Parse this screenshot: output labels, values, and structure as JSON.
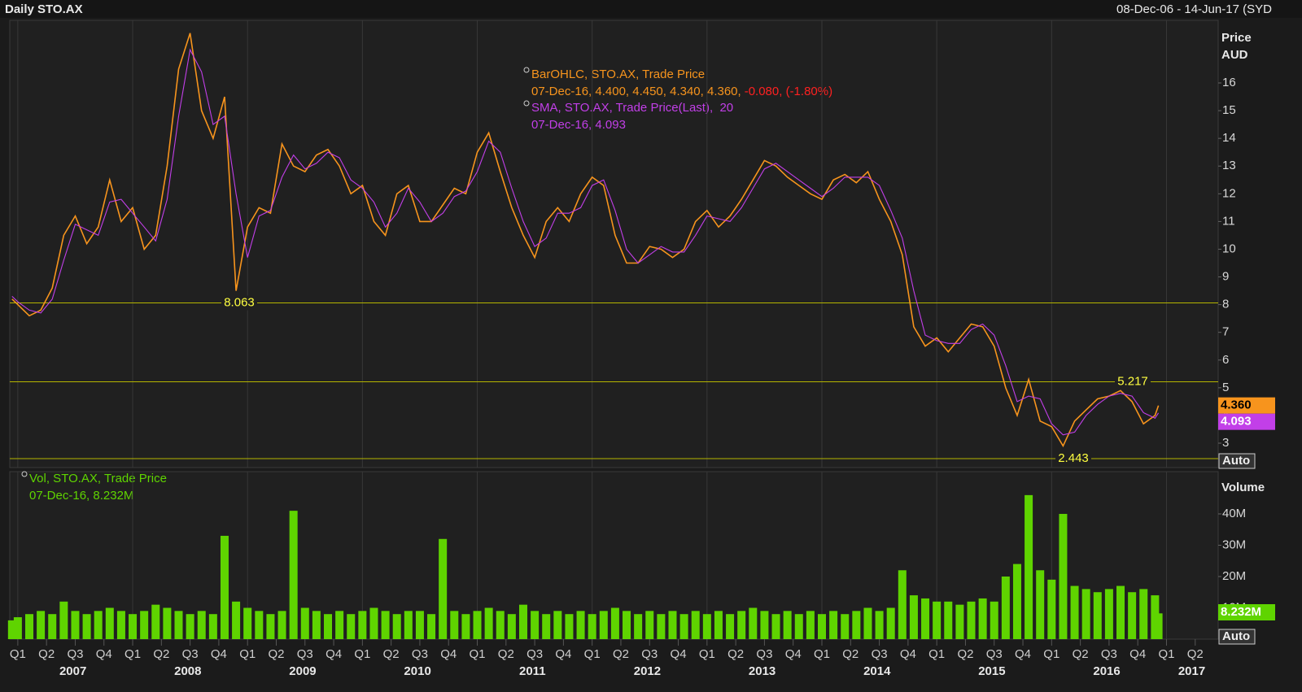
{
  "header": {
    "title": "Daily STO.AX",
    "date_range": "08-Dec-06 - 14-Jun-17 (SYD"
  },
  "chart_data": [
    {
      "type": "line",
      "ylabel": "Price",
      "yunit": "AUD",
      "legend": {
        "ohlc_values": "07-Dec-16, 4.400, 4.450, 4.340, 4.360,",
        "ohlc_change": "-0.080, (-1.80%)",
        "sma_values": "07-Dec-16, 4.093"
      },
      "x": [
        2006.95,
        2007,
        2007.1,
        2007.2,
        2007.3,
        2007.4,
        2007.5,
        2007.6,
        2007.7,
        2007.8,
        2007.9,
        2008,
        2008.1,
        2008.2,
        2008.3,
        2008.4,
        2008.5,
        2008.6,
        2008.7,
        2008.8,
        2008.9,
        2009,
        2009.1,
        2009.2,
        2009.3,
        2009.4,
        2009.5,
        2009.6,
        2009.7,
        2009.8,
        2009.9,
        2010,
        2010.1,
        2010.2,
        2010.3,
        2010.4,
        2010.5,
        2010.6,
        2010.7,
        2010.8,
        2010.9,
        2011,
        2011.1,
        2011.2,
        2011.3,
        2011.4,
        2011.5,
        2011.6,
        2011.7,
        2011.8,
        2011.9,
        2012,
        2012.1,
        2012.2,
        2012.3,
        2012.4,
        2012.5,
        2012.6,
        2012.7,
        2012.8,
        2012.9,
        2013,
        2013.1,
        2013.2,
        2013.3,
        2013.4,
        2013.5,
        2013.6,
        2013.7,
        2013.8,
        2013.9,
        2014,
        2014.1,
        2014.2,
        2014.3,
        2014.4,
        2014.5,
        2014.6,
        2014.7,
        2014.8,
        2014.9,
        2015,
        2015.1,
        2015.2,
        2015.3,
        2015.4,
        2015.5,
        2015.6,
        2015.7,
        2015.8,
        2015.9,
        2016,
        2016.1,
        2016.2,
        2016.3,
        2016.4,
        2016.5,
        2016.6,
        2016.7,
        2016.8,
        2016.9,
        2016.93
      ],
      "xlim": [
        2006.93,
        2017.45
      ],
      "ylim": [
        2.12,
        18.26
      ],
      "yticks": [
        3,
        4,
        5,
        6,
        7,
        8,
        9,
        10,
        11,
        12,
        13,
        14,
        15,
        16
      ],
      "series": [
        {
          "name": "BarOHLC, STO.AX, Trade Price",
          "color": "#f7941d",
          "last_label": "4.360",
          "values": [
            8.2,
            8.0,
            7.6,
            7.8,
            8.6,
            10.5,
            11.2,
            10.2,
            10.8,
            12.5,
            11.0,
            11.5,
            10.0,
            10.5,
            13.0,
            16.5,
            17.8,
            15.0,
            14.0,
            15.5,
            8.5,
            10.8,
            11.5,
            11.3,
            13.8,
            13.0,
            12.8,
            13.4,
            13.6,
            13.0,
            12.0,
            12.3,
            11.0,
            10.5,
            12.0,
            12.3,
            11.0,
            11.0,
            11.6,
            12.2,
            12.0,
            13.5,
            14.2,
            12.8,
            11.5,
            10.5,
            9.7,
            11.0,
            11.5,
            11.0,
            12.0,
            12.6,
            12.3,
            10.5,
            9.5,
            9.5,
            10.1,
            10.0,
            9.7,
            10.0,
            11.0,
            11.4,
            10.8,
            11.2,
            11.8,
            12.5,
            13.2,
            13.0,
            12.6,
            12.3,
            12.0,
            11.8,
            12.5,
            12.7,
            12.4,
            12.8,
            11.8,
            11.0,
            9.8,
            7.2,
            6.5,
            6.8,
            6.3,
            6.8,
            7.3,
            7.2,
            6.5,
            5.0,
            4.0,
            5.3,
            3.8,
            3.6,
            2.9,
            3.8,
            4.2,
            4.6,
            4.7,
            4.9,
            4.5,
            3.7,
            4.0,
            4.36
          ]
        },
        {
          "name": "SMA, STO.AX, Trade Price(Last),  20",
          "color": "#c23fe8",
          "last_label": "4.093",
          "values": [
            8.3,
            8.1,
            7.8,
            7.7,
            8.2,
            9.6,
            10.9,
            10.7,
            10.5,
            11.7,
            11.8,
            11.3,
            10.8,
            10.3,
            11.8,
            14.8,
            17.2,
            16.4,
            14.5,
            14.8,
            12.0,
            9.7,
            11.2,
            11.4,
            12.6,
            13.4,
            12.9,
            13.1,
            13.5,
            13.3,
            12.5,
            12.2,
            11.7,
            10.8,
            11.3,
            12.2,
            11.7,
            11.0,
            11.3,
            11.9,
            12.1,
            12.8,
            13.9,
            13.5,
            12.2,
            11.0,
            10.1,
            10.4,
            11.3,
            11.3,
            11.5,
            12.3,
            12.5,
            11.4,
            10.0,
            9.5,
            9.8,
            10.1,
            9.9,
            9.9,
            10.5,
            11.2,
            11.1,
            11.0,
            11.5,
            12.2,
            12.9,
            13.1,
            12.8,
            12.5,
            12.2,
            11.9,
            12.2,
            12.6,
            12.6,
            12.6,
            12.3,
            11.4,
            10.4,
            8.5,
            6.9,
            6.7,
            6.6,
            6.6,
            7.1,
            7.3,
            6.9,
            5.8,
            4.5,
            4.7,
            4.6,
            3.7,
            3.3,
            3.4,
            4.0,
            4.4,
            4.7,
            4.8,
            4.7,
            4.1,
            3.9,
            4.093
          ]
        }
      ],
      "hlines": [
        8.063,
        5.217,
        2.443
      ],
      "hline_color": "#b5b500",
      "scale_mode": "Auto"
    },
    {
      "type": "bar",
      "ylabel": "Volume",
      "legend_title": "Vol, STO.AX, Trade Price",
      "legend_values": "07-Dec-16, 8.232M",
      "x": [
        2006.95,
        2007,
        2007.1,
        2007.2,
        2007.3,
        2007.4,
        2007.5,
        2007.6,
        2007.7,
        2007.8,
        2007.9,
        2008,
        2008.1,
        2008.2,
        2008.3,
        2008.4,
        2008.5,
        2008.6,
        2008.7,
        2008.8,
        2008.9,
        2009,
        2009.1,
        2009.2,
        2009.3,
        2009.4,
        2009.5,
        2009.6,
        2009.7,
        2009.8,
        2009.9,
        2010,
        2010.1,
        2010.2,
        2010.3,
        2010.4,
        2010.5,
        2010.6,
        2010.7,
        2010.8,
        2010.9,
        2011,
        2011.1,
        2011.2,
        2011.3,
        2011.4,
        2011.5,
        2011.6,
        2011.7,
        2011.8,
        2011.9,
        2012,
        2012.1,
        2012.2,
        2012.3,
        2012.4,
        2012.5,
        2012.6,
        2012.7,
        2012.8,
        2012.9,
        2013,
        2013.1,
        2013.2,
        2013.3,
        2013.4,
        2013.5,
        2013.6,
        2013.7,
        2013.8,
        2013.9,
        2014,
        2014.1,
        2014.2,
        2014.3,
        2014.4,
        2014.5,
        2014.6,
        2014.7,
        2014.8,
        2014.9,
        2015,
        2015.1,
        2015.2,
        2015.3,
        2015.4,
        2015.5,
        2015.6,
        2015.7,
        2015.8,
        2015.9,
        2016,
        2016.1,
        2016.2,
        2016.3,
        2016.4,
        2016.5,
        2016.6,
        2016.7,
        2016.8,
        2016.9,
        2016.93
      ],
      "xlim": [
        2006.93,
        2017.45
      ],
      "ylim": [
        0,
        53500000
      ],
      "yticks": [
        {
          "value": 10000000,
          "label": "10M"
        },
        {
          "value": 20000000,
          "label": "20M"
        },
        {
          "value": 30000000,
          "label": "30M"
        },
        {
          "value": 40000000,
          "label": "40M"
        }
      ],
      "color": "#5fd400",
      "last_label": "8.232M",
      "scale_mode": "Auto",
      "values": [
        6000000,
        7000000,
        8000000,
        9000000,
        8000000,
        12000000,
        9000000,
        8000000,
        9000000,
        10000000,
        9000000,
        8000000,
        9000000,
        11000000,
        10000000,
        9000000,
        8000000,
        9000000,
        8000000,
        33000000,
        12000000,
        10000000,
        9000000,
        8000000,
        9000000,
        41000000,
        10000000,
        9000000,
        8000000,
        9000000,
        8000000,
        9000000,
        10000000,
        9000000,
        8000000,
        9000000,
        9000000,
        8000000,
        32000000,
        9000000,
        8000000,
        9000000,
        10000000,
        9000000,
        8000000,
        11000000,
        9000000,
        8000000,
        9000000,
        8000000,
        9000000,
        8000000,
        9000000,
        10000000,
        9000000,
        8000000,
        9000000,
        8000000,
        9000000,
        8000000,
        9000000,
        8000000,
        9000000,
        8000000,
        9000000,
        10000000,
        9000000,
        8000000,
        9000000,
        8000000,
        9000000,
        8000000,
        9000000,
        8000000,
        9000000,
        10000000,
        9000000,
        10000000,
        22000000,
        14000000,
        13000000,
        12000000,
        12000000,
        11000000,
        12000000,
        13000000,
        12000000,
        20000000,
        24000000,
        46000000,
        22000000,
        19000000,
        40000000,
        17000000,
        16000000,
        15000000,
        16000000,
        17000000,
        15000000,
        16000000,
        14000000,
        8232000
      ]
    }
  ],
  "time_axis": {
    "xticks": [
      {
        "value": 2007,
        "label": "Q1"
      },
      {
        "value": 2007.25,
        "label": "Q2"
      },
      {
        "value": 2007.5,
        "label": "Q3"
      },
      {
        "value": 2007.75,
        "label": "Q4"
      },
      {
        "value": 2008,
        "label": "Q1"
      },
      {
        "value": 2008.25,
        "label": "Q2"
      },
      {
        "value": 2008.5,
        "label": "Q3"
      },
      {
        "value": 2008.75,
        "label": "Q4"
      },
      {
        "value": 2009,
        "label": "Q1"
      },
      {
        "value": 2009.25,
        "label": "Q2"
      },
      {
        "value": 2009.5,
        "label": "Q3"
      },
      {
        "value": 2009.75,
        "label": "Q4"
      },
      {
        "value": 2010,
        "label": "Q1"
      },
      {
        "value": 2010.25,
        "label": "Q2"
      },
      {
        "value": 2010.5,
        "label": "Q3"
      },
      {
        "value": 2010.75,
        "label": "Q4"
      },
      {
        "value": 2011,
        "label": "Q1"
      },
      {
        "value": 2011.25,
        "label": "Q2"
      },
      {
        "value": 2011.5,
        "label": "Q3"
      },
      {
        "value": 2011.75,
        "label": "Q4"
      },
      {
        "value": 2012,
        "label": "Q1"
      },
      {
        "value": 2012.25,
        "label": "Q2"
      },
      {
        "value": 2012.5,
        "label": "Q3"
      },
      {
        "value": 2012.75,
        "label": "Q4"
      },
      {
        "value": 2013,
        "label": "Q1"
      },
      {
        "value": 2013.25,
        "label": "Q2"
      },
      {
        "value": 2013.5,
        "label": "Q3"
      },
      {
        "value": 2013.75,
        "label": "Q4"
      },
      {
        "value": 2014,
        "label": "Q1"
      },
      {
        "value": 2014.25,
        "label": "Q2"
      },
      {
        "value": 2014.5,
        "label": "Q3"
      },
      {
        "value": 2014.75,
        "label": "Q4"
      },
      {
        "value": 2015,
        "label": "Q1"
      },
      {
        "value": 2015.25,
        "label": "Q2"
      },
      {
        "value": 2015.5,
        "label": "Q3"
      },
      {
        "value": 2015.75,
        "label": "Q4"
      },
      {
        "value": 2016,
        "label": "Q1"
      },
      {
        "value": 2016.25,
        "label": "Q2"
      },
      {
        "value": 2016.5,
        "label": "Q3"
      },
      {
        "value": 2016.75,
        "label": "Q4"
      },
      {
        "value": 2017,
        "label": "Q1"
      },
      {
        "value": 2017.25,
        "label": "Q2"
      }
    ],
    "year_ticks": [
      {
        "value": 2007.48,
        "label": "2007"
      },
      {
        "value": 2008.48,
        "label": "2008"
      },
      {
        "value": 2009.48,
        "label": "2009"
      },
      {
        "value": 2010.48,
        "label": "2010"
      },
      {
        "value": 2011.48,
        "label": "2011"
      },
      {
        "value": 2012.48,
        "label": "2012"
      },
      {
        "value": 2013.48,
        "label": "2013"
      },
      {
        "value": 2014.48,
        "label": "2014"
      },
      {
        "value": 2015.48,
        "label": "2015"
      },
      {
        "value": 2016.48,
        "label": "2016"
      },
      {
        "value": 2017.22,
        "label": "2017"
      }
    ]
  }
}
